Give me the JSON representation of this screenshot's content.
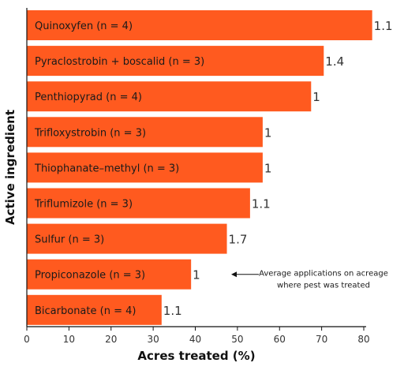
{
  "colors": {
    "bar": "#ff5a1f",
    "bar_stroke": "#ffffff",
    "axis": "#111111",
    "text": "#1a1a1a"
  },
  "chart_data": {
    "type": "bar",
    "orientation": "horizontal",
    "xlabel": "Acres treated (%)",
    "ylabel": "Active ingredient",
    "xlim": [
      0,
      82
    ],
    "xticks": [
      0,
      10,
      20,
      30,
      40,
      50,
      60,
      70,
      80
    ],
    "grid": false,
    "categories": [
      "Quinoxyfen (n = 4)",
      "Pyraclostrobin + boscalid (n = 3)",
      "Penthiopyrad (n = 4)",
      "Trifloxystrobin (n = 3)",
      "Thiophanate–methyl (n = 3)",
      "Triflumizole (n = 3)",
      "Sulfur (n = 3)",
      "Propiconazole (n = 3)",
      "Bicarbonate (n = 4)"
    ],
    "values": [
      82,
      70.5,
      67.5,
      56,
      56,
      53,
      47.5,
      39,
      32
    ],
    "data_labels": [
      "1.1",
      "1.4",
      "1",
      "1",
      "1",
      "1.1",
      "1.7",
      "1",
      "1.1"
    ],
    "annotation": {
      "lines": [
        "Average applications on acreage",
        "where pest was treated"
      ],
      "points_to_category": "Propiconazole (n = 3)"
    }
  }
}
